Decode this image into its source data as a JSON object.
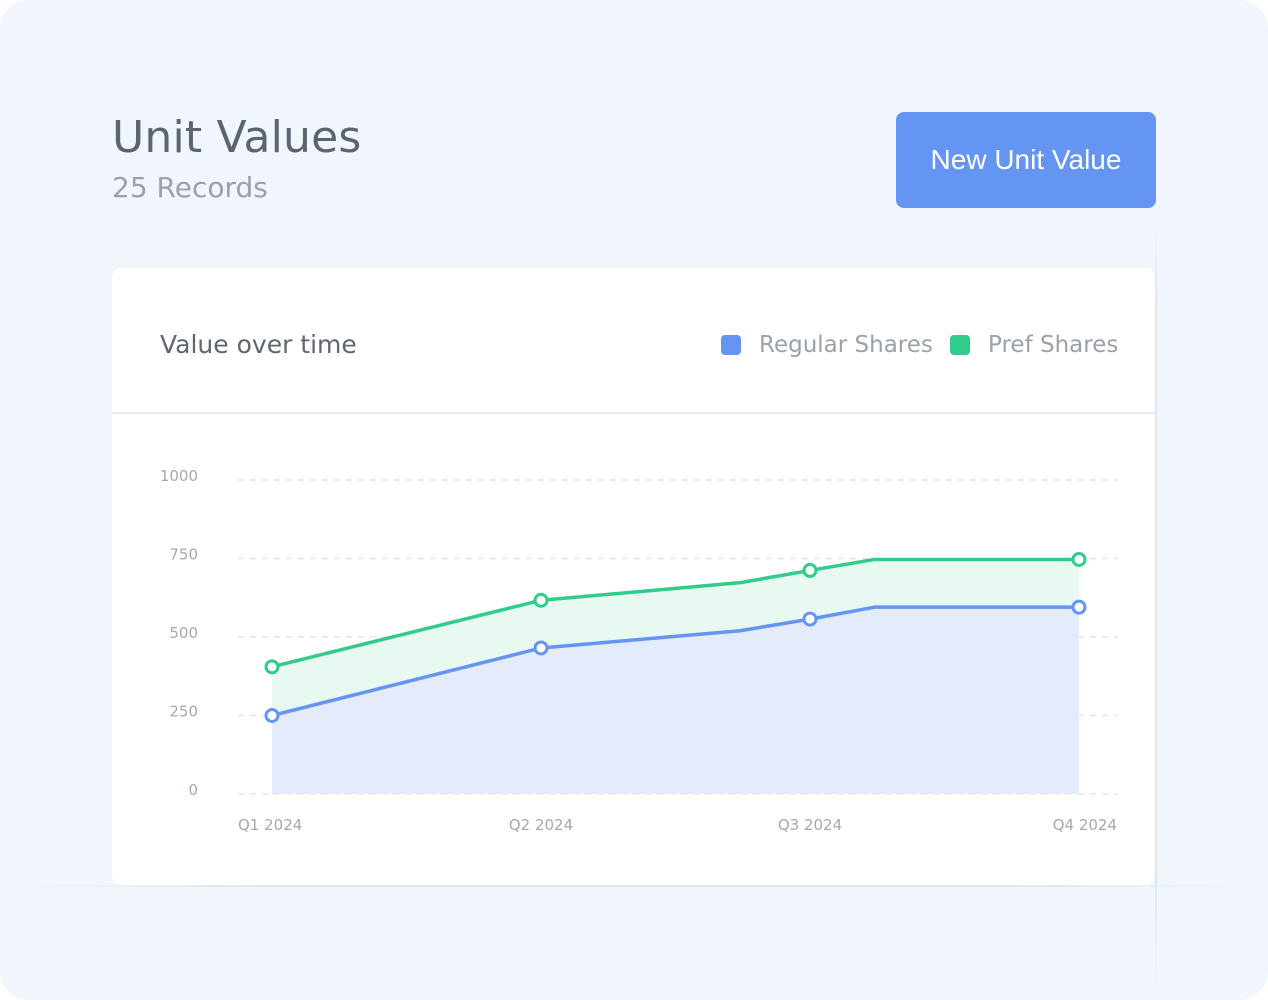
{
  "header": {
    "title": "Unit Values",
    "records": "25 Records",
    "new_button_label": "New Unit Value"
  },
  "card": {
    "title": "Value over time"
  },
  "colors": {
    "regular": "#6495f2",
    "pref": "#2fcc8b",
    "regular_fill": "#e4ecfb",
    "pref_fill": "#e8f9f1",
    "grid": "#e2e6ec",
    "tick_text": "#a3a9b1"
  },
  "chart_data": {
    "type": "area",
    "title": "Value over time",
    "categories": [
      "Q1  2024",
      "Q2  2024",
      "Q3  2024",
      "Q4  2024"
    ],
    "yticks": [
      "0",
      "250",
      "500",
      "750",
      "1000"
    ],
    "ylim": [
      0,
      1000
    ],
    "grid": true,
    "legend": "top-right",
    "series": [
      {
        "name": "Regular Shares",
        "color": "#6495f2",
        "points": [
          [
            0,
            250
          ],
          [
            1,
            465
          ],
          [
            1.74,
            520
          ],
          [
            2,
            557
          ],
          [
            2.24,
            595
          ],
          [
            3,
            595
          ]
        ],
        "markers": [
          [
            0,
            250
          ],
          [
            1,
            465
          ],
          [
            2,
            557
          ],
          [
            3,
            595
          ]
        ]
      },
      {
        "name": "Pref Shares",
        "color": "#2fcc8b",
        "points": [
          [
            0,
            405
          ],
          [
            1,
            617
          ],
          [
            1.74,
            673
          ],
          [
            2,
            712
          ],
          [
            2.24,
            747
          ],
          [
            3,
            747
          ]
        ],
        "markers": [
          [
            0,
            405
          ],
          [
            1,
            617
          ],
          [
            2,
            712
          ],
          [
            3,
            747
          ]
        ]
      }
    ]
  }
}
